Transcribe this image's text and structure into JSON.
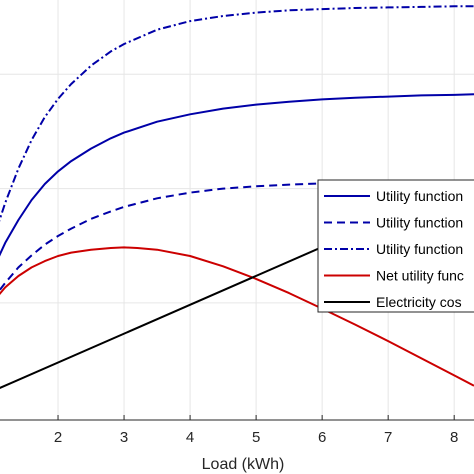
{
  "chart_data": {
    "type": "line",
    "xlabel": "Load (kWh)",
    "ylabel": "",
    "xlim": [
      1,
      8.3
    ],
    "ylim": [
      -2.05,
      5.3
    ],
    "x_ticks": [
      2,
      3,
      4,
      5,
      6,
      7,
      8
    ],
    "y_gridlines": [
      0,
      2,
      4
    ],
    "grid": true,
    "legend_position": "right",
    "series": [
      {
        "name": "Utility function",
        "color": "#0000a8",
        "style": "solid",
        "x": [
          1.0,
          1.2,
          1.4,
          1.6,
          1.8,
          2.0,
          2.2,
          2.5,
          2.8,
          3.0,
          3.5,
          4.0,
          4.5,
          5.0,
          5.5,
          6.0,
          6.5,
          7.0,
          7.5,
          8.0,
          8.3
        ],
        "values": [
          0.55,
          1.05,
          1.45,
          1.8,
          2.08,
          2.3,
          2.48,
          2.7,
          2.88,
          2.98,
          3.17,
          3.3,
          3.4,
          3.47,
          3.52,
          3.56,
          3.59,
          3.61,
          3.63,
          3.64,
          3.65
        ]
      },
      {
        "name": "Utility function",
        "color": "#0000a8",
        "style": "dashed",
        "x": [
          1.0,
          1.2,
          1.4,
          1.6,
          1.8,
          2.0,
          2.2,
          2.5,
          2.8,
          3.0,
          3.5,
          4.0,
          4.5,
          5.0,
          5.5,
          6.0,
          6.5,
          7.0,
          7.5,
          8.0,
          8.3
        ],
        "values": [
          0.05,
          0.35,
          0.62,
          0.83,
          1.02,
          1.17,
          1.3,
          1.47,
          1.6,
          1.68,
          1.83,
          1.93,
          2.0,
          2.04,
          2.07,
          2.09,
          2.1,
          2.11,
          2.12,
          2.12,
          2.13
        ]
      },
      {
        "name": "Utility function",
        "color": "#0000a8",
        "style": "dashdot",
        "x": [
          1.0,
          1.2,
          1.4,
          1.6,
          1.8,
          2.0,
          2.2,
          2.5,
          2.8,
          3.0,
          3.5,
          4.0,
          4.5,
          5.0,
          5.5,
          6.0,
          6.5,
          7.0,
          7.5,
          8.0,
          8.3
        ],
        "values": [
          1.05,
          1.75,
          2.35,
          2.85,
          3.25,
          3.57,
          3.83,
          4.15,
          4.4,
          4.53,
          4.78,
          4.93,
          5.02,
          5.08,
          5.12,
          5.14,
          5.16,
          5.17,
          5.18,
          5.19,
          5.19
        ]
      },
      {
        "name": "Net utility func",
        "color": "#cc0000",
        "style": "solid",
        "x": [
          1.0,
          1.2,
          1.4,
          1.6,
          1.8,
          2.0,
          2.2,
          2.5,
          2.8,
          3.0,
          3.2,
          3.5,
          4.0,
          4.5,
          5.0,
          5.5,
          6.0,
          6.5,
          7.0,
          7.5,
          8.0,
          8.3
        ],
        "values": [
          0.0,
          0.27,
          0.47,
          0.62,
          0.73,
          0.82,
          0.88,
          0.93,
          0.96,
          0.97,
          0.96,
          0.93,
          0.82,
          0.64,
          0.42,
          0.17,
          -0.1,
          -0.38,
          -0.67,
          -0.97,
          -1.27,
          -1.45
        ]
      },
      {
        "name": "Electricity cos",
        "color": "#000000",
        "style": "solid",
        "x": [
          1.0,
          8.3
        ],
        "values": [
          -1.55,
          2.14
        ]
      }
    ]
  }
}
